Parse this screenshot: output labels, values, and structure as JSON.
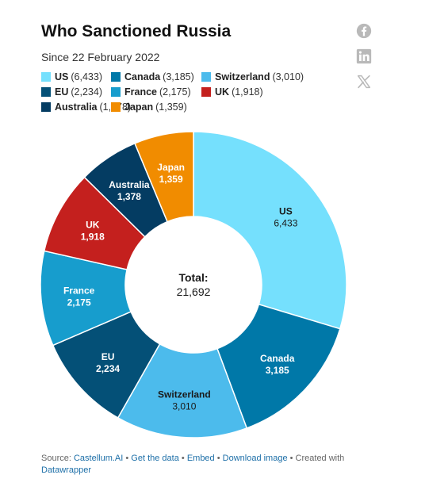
{
  "header": {
    "title": "Who Sanctioned Russia",
    "subtitle": "Since 22 February 2022"
  },
  "share": {
    "icons": [
      "facebook-icon",
      "linkedin-icon",
      "x-icon"
    ]
  },
  "chart_data": {
    "type": "pie",
    "title": "Who Sanctioned Russia",
    "subtitle": "Since 22 February 2022",
    "center_label": "Total:",
    "center_value": "21,692",
    "legend_placement": "top",
    "series": [
      {
        "name": "US",
        "value": 6433,
        "value_label": "6,433",
        "legend_count": "(6,433)",
        "color": "#75e0fd",
        "label_color": "#1a1a1a"
      },
      {
        "name": "Canada",
        "value": 3185,
        "value_label": "3,185",
        "legend_count": "(3,185)",
        "color": "#0078a8",
        "label_color": "#ffffff"
      },
      {
        "name": "Switzerland",
        "value": 3010,
        "value_label": "3,010",
        "legend_count": "(3,010)",
        "color": "#4cbbec",
        "label_color": "#1a1a1a"
      },
      {
        "name": "EU",
        "value": 2234,
        "value_label": "2,234",
        "legend_count": "(2,234)",
        "color": "#045077",
        "label_color": "#ffffff"
      },
      {
        "name": "France",
        "value": 2175,
        "value_label": "2,175",
        "legend_count": "(2,175)",
        "color": "#179dcd",
        "label_color": "#ffffff"
      },
      {
        "name": "UK",
        "value": 1918,
        "value_label": "1,918",
        "legend_count": "(1,918)",
        "color": "#c4201e",
        "label_color": "#ffffff"
      },
      {
        "name": "Australia",
        "value": 1378,
        "value_label": "1,378",
        "legend_count": "(1,378)",
        "color": "#043c62",
        "label_color": "#ffffff"
      },
      {
        "name": "Japan",
        "value": 1359,
        "value_label": "1,359",
        "legend_count": "(1,359)",
        "color": "#f18c00",
        "label_color": "#ffffff"
      }
    ]
  },
  "footer": {
    "source_prefix": "Source: ",
    "source_link": "Castellum.AI",
    "sep1": " • ",
    "get_data": "Get the data",
    "sep2": " • ",
    "embed": "Embed",
    "sep3": " • ",
    "download": "Download image",
    "created_with": " • Created with ",
    "datawrapper": "Datawrapper"
  }
}
